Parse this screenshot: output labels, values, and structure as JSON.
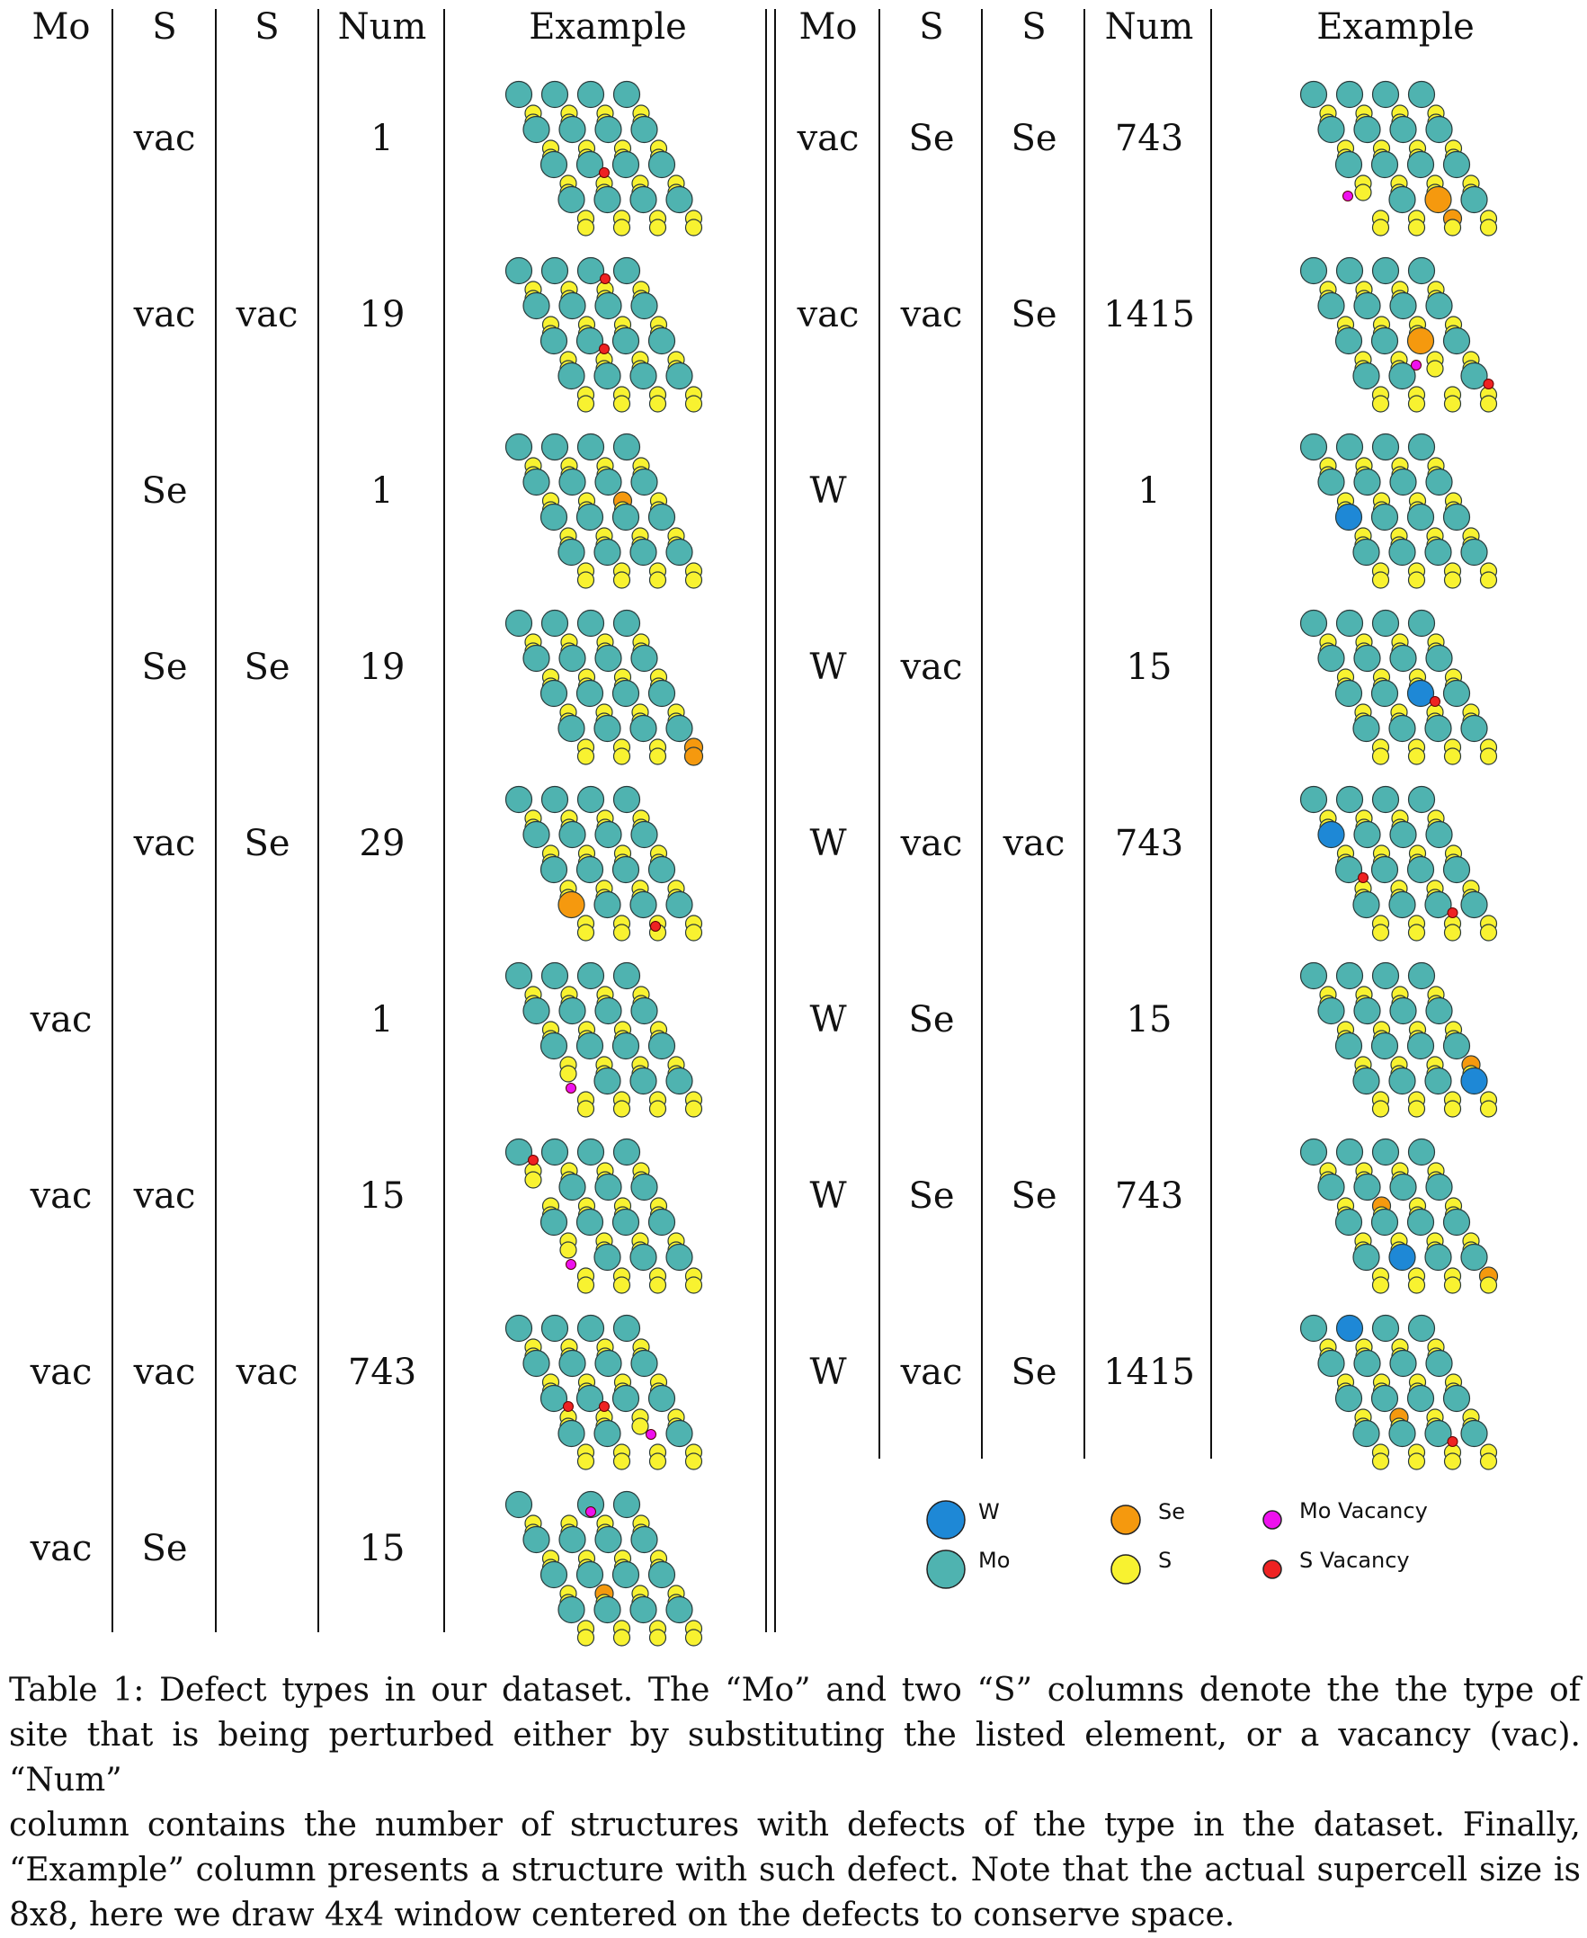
{
  "table": {
    "headers": [
      "Mo",
      "S",
      "S",
      "Num",
      "Example"
    ],
    "left_rows": [
      {
        "mo": "",
        "s1": "vac",
        "s2": "",
        "num": "1",
        "example_icon": "lattice-s-vacancy"
      },
      {
        "mo": "",
        "s1": "vac",
        "s2": "vac",
        "num": "19",
        "example_icon": "lattice-two-s-vacancies"
      },
      {
        "mo": "",
        "s1": "Se",
        "s2": "",
        "num": "1",
        "example_icon": "lattice-se-substitution"
      },
      {
        "mo": "",
        "s1": "Se",
        "s2": "Se",
        "num": "19",
        "example_icon": "lattice-two-se-substitutions"
      },
      {
        "mo": "",
        "s1": "vac",
        "s2": "Se",
        "num": "29",
        "example_icon": "lattice-s-vacancy-se-substitution"
      },
      {
        "mo": "vac",
        "s1": "",
        "s2": "",
        "num": "1",
        "example_icon": "lattice-mo-vacancy"
      },
      {
        "mo": "vac",
        "s1": "vac",
        "s2": "",
        "num": "15",
        "example_icon": "lattice-mo-vacancy-s-vacancy"
      },
      {
        "mo": "vac",
        "s1": "vac",
        "s2": "vac",
        "num": "743",
        "example_icon": "lattice-mo-vacancy-two-s-vacancies"
      },
      {
        "mo": "vac",
        "s1": "Se",
        "s2": "",
        "num": "15",
        "example_icon": "lattice-mo-vacancy-se-substitution"
      }
    ],
    "right_rows": [
      {
        "mo": "vac",
        "s1": "Se",
        "s2": "Se",
        "num": "743",
        "example_icon": "lattice-mo-vacancy-two-se"
      },
      {
        "mo": "vac",
        "s1": "vac",
        "s2": "Se",
        "num": "1415",
        "example_icon": "lattice-mo-vacancy-s-vacancy-se"
      },
      {
        "mo": "W",
        "s1": "",
        "s2": "",
        "num": "1",
        "example_icon": "lattice-w-substitution"
      },
      {
        "mo": "W",
        "s1": "vac",
        "s2": "",
        "num": "15",
        "example_icon": "lattice-w-s-vacancy"
      },
      {
        "mo": "W",
        "s1": "vac",
        "s2": "vac",
        "num": "743",
        "example_icon": "lattice-w-two-s-vacancies"
      },
      {
        "mo": "W",
        "s1": "Se",
        "s2": "",
        "num": "15",
        "example_icon": "lattice-w-se"
      },
      {
        "mo": "W",
        "s1": "Se",
        "s2": "Se",
        "num": "743",
        "example_icon": "lattice-w-two-se"
      },
      {
        "mo": "W",
        "s1": "vac",
        "s2": "Se",
        "num": "1415",
        "example_icon": "lattice-w-s-vacancy-se"
      }
    ]
  },
  "legend": [
    {
      "label": "W",
      "color": "#1e88d6",
      "icon": "w-atom-icon"
    },
    {
      "label": "Se",
      "color": "#f5990e",
      "icon": "se-atom-icon"
    },
    {
      "label": "Mo Vacancy",
      "color": "#ee11ee",
      "icon": "mo-vacancy-icon"
    },
    {
      "label": "Mo",
      "color": "#4fb3b0",
      "icon": "mo-atom-icon"
    },
    {
      "label": "S",
      "color": "#f8f230",
      "icon": "s-atom-icon"
    },
    {
      "label": "S Vacancy",
      "color": "#ee2222",
      "icon": "s-vacancy-icon"
    }
  ],
  "caption_lines": [
    "Table 1: Defect types in our dataset. The “Mo” and two “S” columns denote the the type of",
    "site that is being perturbed either by substituting the listed element, or a vacancy (vac). “Num”",
    "column contains the number of structures with defects of the type in the dataset. Finally,",
    "“Example” column presents a structure with such defect. Note that the actual supercell size is",
    "8x8, here we draw 4x4 window centered on the defects to conserve space."
  ],
  "colors": {
    "mo": "#4fb3b0",
    "s": "#f8f230",
    "w": "#1e88d6",
    "se": "#f5990e",
    "mo_vacancy": "#ee11ee",
    "s_vacancy": "#ee2222"
  }
}
